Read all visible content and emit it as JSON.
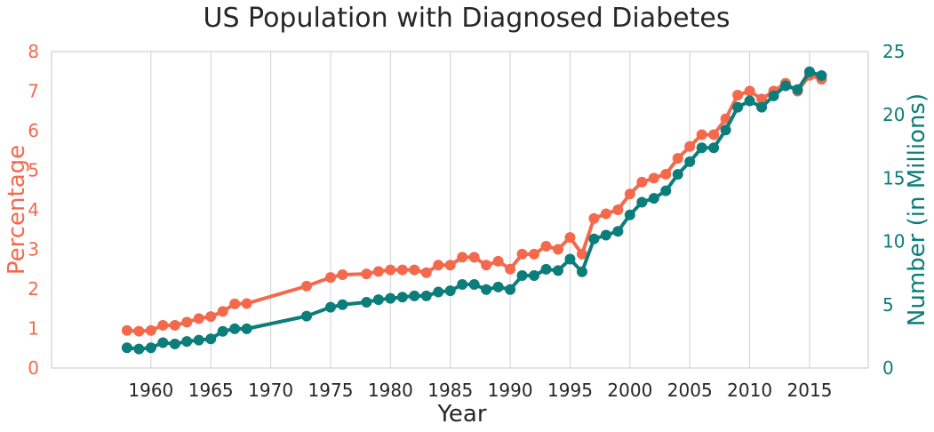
{
  "chart_data": {
    "type": "line",
    "title": "US Population with Diagnosed Diabetes",
    "xlabel": "Year",
    "ylabel_left": "Percentage",
    "ylabel_right": "Number (in Millions)",
    "xlim": [
      1951.7,
      2019.9
    ],
    "ylim_left": [
      0,
      8
    ],
    "ylim_right": [
      0,
      25
    ],
    "xticks": [
      1960,
      1965,
      1970,
      1975,
      1980,
      1985,
      1990,
      1995,
      2000,
      2005,
      2010,
      2015
    ],
    "yticks_left": [
      0,
      1,
      2,
      3,
      4,
      5,
      6,
      7,
      8
    ],
    "yticks_right": [
      0,
      5,
      10,
      15,
      20,
      25
    ],
    "grid": "vertical",
    "legend": "none",
    "colors": {
      "left": "#f4694c",
      "right": "#0b7d7a",
      "text": "#262626",
      "grid": "#d0d0d0"
    },
    "x": [
      1958,
      1959,
      1960,
      1961,
      1962,
      1963,
      1964,
      1965,
      1966,
      1967,
      1968,
      1973,
      1975,
      1976,
      1978,
      1979,
      1980,
      1981,
      1982,
      1983,
      1984,
      1985,
      1986,
      1987,
      1988,
      1989,
      1990,
      1991,
      1992,
      1993,
      1994,
      1995,
      1996,
      1997,
      1998,
      1999,
      2000,
      2001,
      2002,
      2003,
      2004,
      2005,
      2006,
      2007,
      2008,
      2009,
      2010,
      2011,
      2012,
      2013,
      2014,
      2015,
      2016
    ],
    "series": [
      {
        "axis": "left",
        "values": [
          0.95,
          0.93,
          0.95,
          1.08,
          1.08,
          1.16,
          1.25,
          1.3,
          1.43,
          1.62,
          1.63,
          2.07,
          2.29,
          2.36,
          2.38,
          2.44,
          2.48,
          2.48,
          2.48,
          2.41,
          2.6,
          2.6,
          2.8,
          2.8,
          2.6,
          2.7,
          2.5,
          2.88,
          2.88,
          3.08,
          3.0,
          3.3,
          2.88,
          3.78,
          3.9,
          4.0,
          4.4,
          4.7,
          4.8,
          4.9,
          5.3,
          5.6,
          5.9,
          5.9,
          6.3,
          6.9,
          7.0,
          6.8,
          7.0,
          7.2,
          7.0,
          7.4,
          7.3
        ]
      },
      {
        "axis": "right",
        "values": [
          1.6,
          1.5,
          1.6,
          2.0,
          1.9,
          2.1,
          2.2,
          2.3,
          2.9,
          3.1,
          3.1,
          4.1,
          4.8,
          5.0,
          5.2,
          5.4,
          5.5,
          5.6,
          5.7,
          5.7,
          6.0,
          6.1,
          6.6,
          6.6,
          6.2,
          6.4,
          6.2,
          7.3,
          7.3,
          7.8,
          7.7,
          8.6,
          7.6,
          10.2,
          10.5,
          10.8,
          12.1,
          13.1,
          13.4,
          14.0,
          15.3,
          16.3,
          17.4,
          17.4,
          18.8,
          20.6,
          21.1,
          20.6,
          21.5,
          22.3,
          22.0,
          23.4,
          23.1
        ]
      }
    ]
  }
}
